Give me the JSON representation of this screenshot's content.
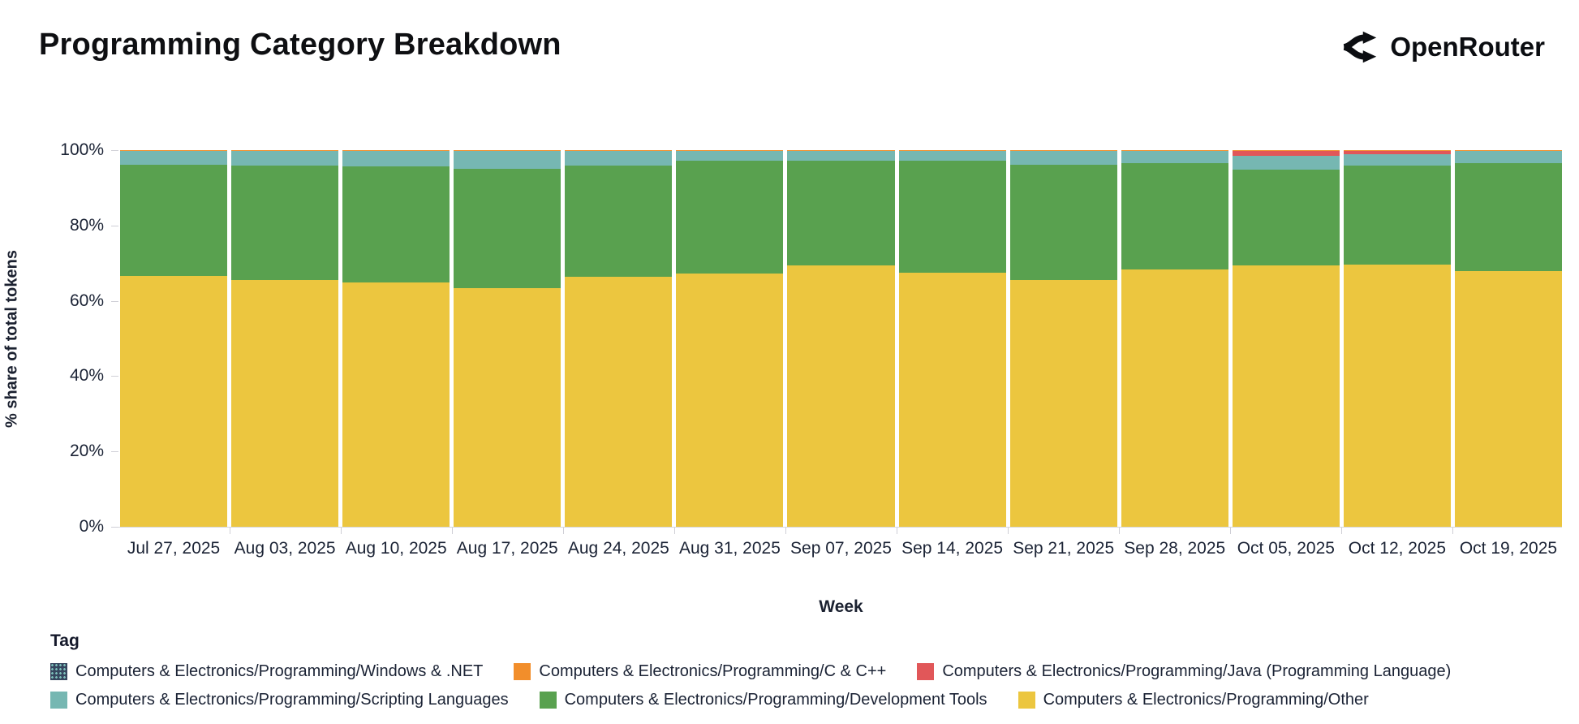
{
  "header": {
    "title": "Programming Category Breakdown",
    "brand": {
      "name": "OpenRouter"
    }
  },
  "chart_data": {
    "type": "bar",
    "variant": "stacked-100-percent",
    "title": "Programming Category Breakdown",
    "xlabel": "Week",
    "ylabel": "% share of total tokens",
    "ylim": [
      0,
      100
    ],
    "ytick_labels": [
      "0%",
      "20%",
      "40%",
      "60%",
      "80%",
      "100%"
    ],
    "grid": "ticks-only",
    "legend_title": "Tag",
    "legend_position": "bottom-left",
    "categories": [
      "Jul 27, 2025",
      "Aug 03, 2025",
      "Aug 10, 2025",
      "Aug 17, 2025",
      "Aug 24, 2025",
      "Aug 31, 2025",
      "Sep 07, 2025",
      "Sep 14, 2025",
      "Sep 21, 2025",
      "Sep 28, 2025",
      "Oct 05, 2025",
      "Oct 12, 2025",
      "Oct 19, 2025"
    ],
    "series": [
      {
        "name": "Computers & Electronics/Programming/Windows & .NET",
        "color": "#35455e",
        "pattern": "teal-speckle",
        "pattern_dot_color": "#7bbdb8",
        "values": [
          0.05,
          0.05,
          0.05,
          0.05,
          0.05,
          0.05,
          0.05,
          0.05,
          0.05,
          0.05,
          0.05,
          0.05,
          0.05
        ]
      },
      {
        "name": "Computers & Electronics/Programming/C & C++",
        "color": "#f28e2b",
        "values": [
          0.25,
          0.25,
          0.25,
          0.25,
          0.25,
          0.25,
          0.25,
          0.25,
          0.25,
          0.25,
          0.25,
          0.25,
          0.25
        ]
      },
      {
        "name": "Computers & Electronics/Programming/Java (Programming Language)",
        "color": "#e15759",
        "values": [
          0,
          0,
          0,
          0,
          0,
          0,
          0,
          0,
          0,
          0,
          1.2,
          0.8,
          0
        ]
      },
      {
        "name": "Computers & Electronics/Programming/Scripting Languages",
        "color": "#76b7b2",
        "values": [
          3.6,
          3.8,
          4.0,
          4.6,
          3.7,
          2.4,
          2.6,
          2.6,
          3.6,
          3.1,
          3.6,
          3.0,
          3.1
        ]
      },
      {
        "name": "Computers & Electronics/Programming/Development Tools",
        "color": "#59a14f",
        "values": [
          29.6,
          30.4,
          30.9,
          31.8,
          29.7,
          30.0,
          27.8,
          29.6,
          30.6,
          28.3,
          25.6,
          26.4,
          28.8
        ]
      },
      {
        "name": "Computers & Electronics/Programming/Other",
        "color": "#ecc63f",
        "values": [
          66.5,
          65.5,
          64.8,
          63.3,
          66.3,
          67.3,
          69.3,
          67.5,
          65.5,
          68.3,
          69.3,
          69.5,
          67.8
        ]
      }
    ],
    "stack_order_bottom_to_top": [
      5,
      4,
      3,
      2,
      1,
      0
    ],
    "legend_rows": [
      [
        0,
        1,
        2
      ],
      [
        3,
        4,
        5
      ]
    ]
  }
}
